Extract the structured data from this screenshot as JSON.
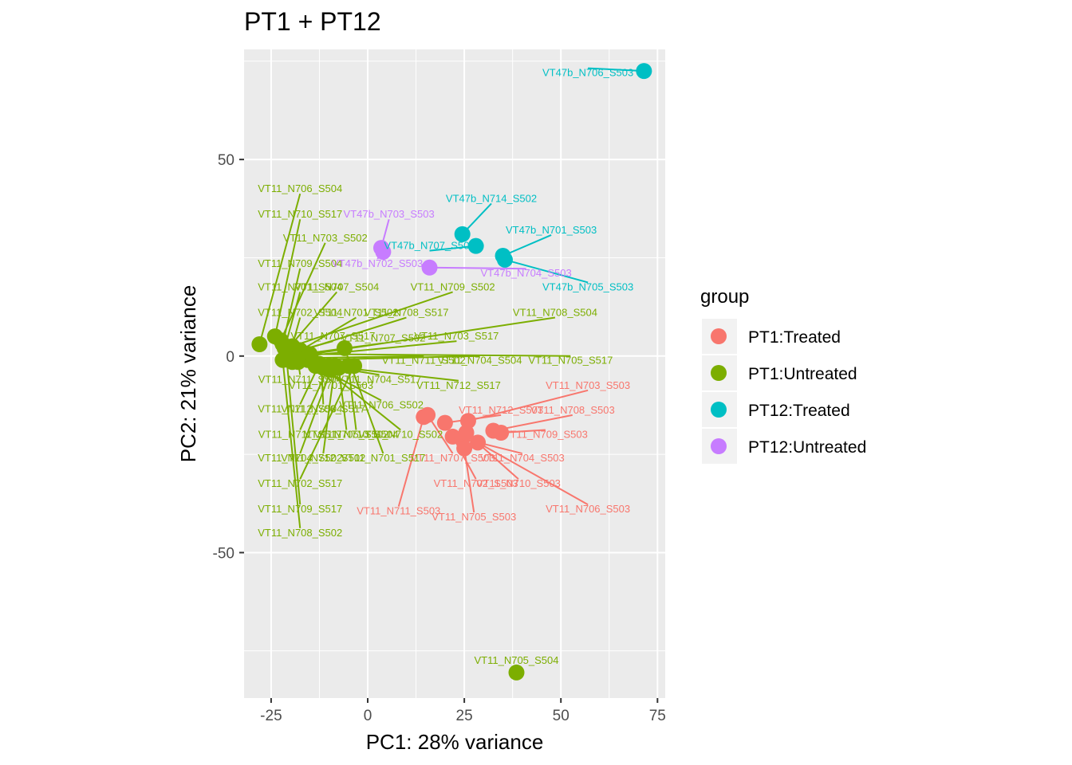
{
  "chart_data": {
    "type": "scatter",
    "title": "PT1 + PT12",
    "xlabel": "PC1: 28% variance",
    "ylabel": "PC2: 21% variance",
    "xlim": [
      -32,
      77
    ],
    "ylim": [
      -87,
      78
    ],
    "x_ticks": [
      -25,
      0,
      25,
      50,
      75
    ],
    "x_tick_labels": [
      "-25",
      "0",
      "25",
      "50",
      "75"
    ],
    "y_ticks": [
      -50,
      0,
      50
    ],
    "y_tick_labels": [
      "-50",
      "0",
      "50"
    ],
    "grid": true,
    "legend": {
      "title": "group",
      "position": "right",
      "entries": [
        {
          "name": "PT1:Treated",
          "color": "#F8766D"
        },
        {
          "name": "PT1:Untreated",
          "color": "#7CAE00"
        },
        {
          "name": "PT12:Treated",
          "color": "#00BFC4"
        },
        {
          "name": "PT12:Untreated",
          "color": "#C77CFF"
        }
      ]
    },
    "series": [
      {
        "name": "PT1:Treated",
        "color": "#F8766D",
        "points": [
          {
            "x": 14.5,
            "y": -15.5,
            "label": "VT11_N711_S503",
            "lx": 8.0,
            "ly": -39.5
          },
          {
            "x": 15.5,
            "y": -15.0,
            "label": "VT11_N707_S503",
            "lx": 22.0,
            "ly": -26.0
          },
          {
            "x": 20.0,
            "y": -17.0,
            "label": "VT11_N712_S503",
            "lx": 34.5,
            "ly": -13.8
          },
          {
            "x": 22.0,
            "y": -20.5,
            "label": "VT11_N702_S503",
            "lx": 28.0,
            "ly": -32.5
          },
          {
            "x": 24.5,
            "y": -21.0,
            "label": "VT11_N704_S503",
            "lx": 40.0,
            "ly": -26.0
          },
          {
            "x": 25.0,
            "y": -23.5,
            "label": "VT11_N705_S503",
            "lx": 27.5,
            "ly": -41.0
          },
          {
            "x": 25.5,
            "y": -19.5,
            "label": "VT11_N710_S503",
            "lx": 39.0,
            "ly": -32.5
          },
          {
            "x": 26.0,
            "y": -16.5,
            "label": "VT11_N703_S503",
            "lx": 57.0,
            "ly": -7.5
          },
          {
            "x": 28.5,
            "y": -22.0,
            "label": "VT11_N706_S503",
            "lx": 57.0,
            "ly": -39.0
          },
          {
            "x": 32.5,
            "y": -19.0,
            "label": "VT11_N708_S503",
            "lx": 53.0,
            "ly": -13.8
          },
          {
            "x": 34.5,
            "y": -19.5,
            "label": "VT11_N709_S503",
            "lx": 46.0,
            "ly": -20.0
          }
        ]
      },
      {
        "name": "PT1:Untreated",
        "color": "#7CAE00",
        "points": [
          {
            "x": 38.5,
            "y": -80.5,
            "label": "VT11_N705_S504",
            "lx": 38.5,
            "ly": -77.5
          },
          {
            "x": -28.0,
            "y": 3.0,
            "label": "VT11_N706_S504",
            "lx": -17.5,
            "ly": 42.5
          },
          {
            "x": -24.0,
            "y": 5.0,
            "label": "VT11_N710_S517",
            "lx": -17.5,
            "ly": 36.0
          },
          {
            "x": -22.5,
            "y": 4.0,
            "label": "VT11_N703_S502",
            "lx": -11.0,
            "ly": 30.0
          },
          {
            "x": -22.0,
            "y": 3.0,
            "label": "VT11_N709_S504",
            "lx": -17.5,
            "ly": 23.5
          },
          {
            "x": -21.5,
            "y": 2.0,
            "label": "VT11_N701_S504",
            "lx": -17.5,
            "ly": 17.5
          },
          {
            "x": -21.0,
            "y": 1.5,
            "label": "VT11_N707_S504",
            "lx": -8.0,
            "ly": 17.5
          },
          {
            "x": -20.0,
            "y": 1.0,
            "label": "VT11_N702_S504",
            "lx": -17.5,
            "ly": 11.0
          },
          {
            "x": -19.5,
            "y": 2.5,
            "label": "VT11_N709_S502",
            "lx": 22.0,
            "ly": 17.5
          },
          {
            "x": -19.0,
            "y": 0.5,
            "label": "VT11_N701_S502",
            "lx": -3.0,
            "ly": 11.0
          },
          {
            "x": -18.5,
            "y": 1.0,
            "label": "VT11_N708_S517",
            "lx": 10.0,
            "ly": 11.0
          },
          {
            "x": -18.0,
            "y": 0.0,
            "label": "VT11_N708_S504",
            "lx": 48.5,
            "ly": 11.0
          },
          {
            "x": -17.5,
            "y": 1.5,
            "label": "VT11_N707_S517",
            "lx": -9.0,
            "ly": 5.0
          },
          {
            "x": -17.0,
            "y": 0.5,
            "label": "VT11_N707_S502",
            "lx": 4.0,
            "ly": 4.5
          },
          {
            "x": -16.5,
            "y": 0.0,
            "label": "VT11_N703_S517",
            "lx": 23.0,
            "ly": 5.0
          },
          {
            "x": -16.0,
            "y": -0.5,
            "label": "VT11_N711_S502",
            "lx": 14.5,
            "ly": -1.2
          },
          {
            "x": -15.5,
            "y": -1.0,
            "label": "VT11_N704_S504",
            "lx": 29.0,
            "ly": -1.2
          },
          {
            "x": -15.0,
            "y": 0.5,
            "label": "VT11_N705_S517",
            "lx": 52.5,
            "ly": -1.2
          },
          {
            "x": -20.5,
            "y": -1.0,
            "label": "VT11_N704_S517",
            "lx": 3.0,
            "ly": -6.0
          },
          {
            "x": -19.5,
            "y": -1.5,
            "label": "VT11_N712_S517",
            "lx": 23.5,
            "ly": -7.5
          },
          {
            "x": -18.0,
            "y": -1.5,
            "label": "VT11_N711_S504",
            "lx": -17.5,
            "ly": -6.0
          },
          {
            "x": -14.0,
            "y": -1.5,
            "label": "VT11_N701_S503",
            "lx": -9.5,
            "ly": -7.5
          },
          {
            "x": -13.5,
            "y": -2.5,
            "label": "VT11_N706_S502",
            "lx": 3.5,
            "ly": -12.5
          },
          {
            "x": -12.5,
            "y": -2.0,
            "label": "VT11_N712_S504",
            "lx": -17.5,
            "ly": -13.5
          },
          {
            "x": -12.0,
            "y": -2.5,
            "label": "VT11_N706_S517",
            "lx": -11.5,
            "ly": -13.5
          },
          {
            "x": -11.5,
            "y": -3.0,
            "label": "VT11_N710_S502",
            "lx": 8.5,
            "ly": -20.0
          },
          {
            "x": -10.0,
            "y": -2.5,
            "label": "VT11_N711_S517",
            "lx": -17.5,
            "ly": -20.0
          },
          {
            "x": -9.5,
            "y": -3.5,
            "label": "VT11_N704_S502",
            "lx": -17.5,
            "ly": -26.0
          },
          {
            "x": -8.5,
            "y": -2.5,
            "label": "VT11_N712_S502",
            "lx": -11.5,
            "ly": -26.0
          },
          {
            "x": -7.5,
            "y": -3.0,
            "label": "VT11_N705_S502",
            "lx": -5.5,
            "ly": -20.0
          },
          {
            "x": -6.0,
            "y": 2.0,
            "label": "VT11_N701_S517",
            "lx": 4.0,
            "ly": -26.0
          },
          {
            "x": -5.0,
            "y": -2.5,
            "label": "VT11_N710_S504",
            "lx": -3.0,
            "ly": -20.0
          },
          {
            "x": -3.5,
            "y": -2.5,
            "label": "VT11_N702_S517",
            "lx": -17.5,
            "ly": -32.5
          },
          {
            "x": -21.0,
            "y": -0.5,
            "label": "VT11_N709_S517",
            "lx": -17.5,
            "ly": -39.0
          },
          {
            "x": -22.0,
            "y": -1.0,
            "label": "VT11_N708_S502",
            "lx": -17.5,
            "ly": -45.0
          }
        ]
      },
      {
        "name": "PT12:Treated",
        "color": "#00BFC4",
        "points": [
          {
            "x": 71.5,
            "y": 72.5,
            "label": "VT47b_N706_S503",
            "lx": 57.0,
            "ly": 72.0
          },
          {
            "x": 24.5,
            "y": 31.0,
            "label": "VT47b_N714_S502",
            "lx": 32.0,
            "ly": 40.0
          },
          {
            "x": 28.0,
            "y": 28.0,
            "label": "VT47b_N707_S503",
            "lx": 16.0,
            "ly": 28.0
          },
          {
            "x": 35.0,
            "y": 25.5,
            "label": "VT47b_N701_S503",
            "lx": 47.5,
            "ly": 32.0
          },
          {
            "x": 35.5,
            "y": 24.5,
            "label": "VT47b_N705_S503",
            "lx": 57.0,
            "ly": 17.5
          }
        ]
      },
      {
        "name": "PT12:Untreated",
        "color": "#C77CFF",
        "points": [
          {
            "x": 3.5,
            "y": 27.5,
            "label": "VT47b_N703_S503",
            "lx": 5.5,
            "ly": 36.0
          },
          {
            "x": 4.0,
            "y": 26.5,
            "label": "VT47b_N702_S503",
            "lx": 2.5,
            "ly": 23.5
          },
          {
            "x": 16.0,
            "y": 22.5,
            "label": "VT47b_N704_S503",
            "lx": 41.0,
            "ly": 21.0
          }
        ]
      }
    ]
  }
}
